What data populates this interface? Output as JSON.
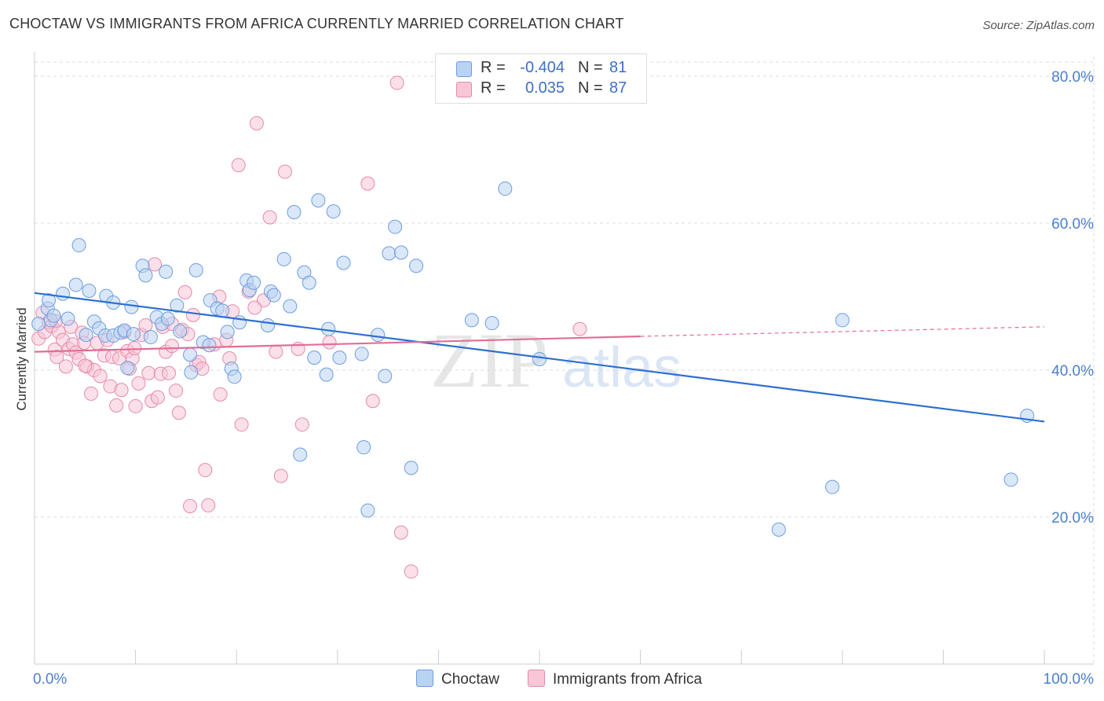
{
  "title": "CHOCTAW VS IMMIGRANTS FROM AFRICA CURRENTLY MARRIED CORRELATION CHART",
  "source": "Source: ZipAtlas.com",
  "watermark": {
    "zip": "ZIP",
    "atlas": "atlas"
  },
  "colors": {
    "choctaw_fill": "#b9d3f3",
    "choctaw_stroke": "#6d9de0",
    "choctaw_line": "#2e6fd1",
    "africa_fill": "#f8c6d7",
    "africa_stroke": "#e58aaa",
    "africa_line": "#e26d98",
    "tick_text": "#4a7fd0",
    "grid": "#dddddd"
  },
  "legend": {
    "rows": [
      {
        "r_label": "R =",
        "r_value": "-0.404",
        "n_label": "N =",
        "n_value": "81"
      },
      {
        "r_label": "R =",
        "r_value": "0.035",
        "n_label": "N =",
        "n_value": "87"
      }
    ]
  },
  "chart_data": {
    "type": "scatter",
    "title": "CHOCTAW VS IMMIGRANTS FROM AFRICA CURRENTLY MARRIED CORRELATION CHART",
    "xlabel": "",
    "ylabel": "Currently Married",
    "xlim": [
      0,
      100
    ],
    "ylim": [
      0,
      80
    ],
    "x_tick_labels": [
      "0.0%",
      "100.0%"
    ],
    "y_ticks": [
      20,
      40,
      60,
      80
    ],
    "y_tick_labels": [
      "20.0%",
      "40.0%",
      "60.0%",
      "80.0%"
    ],
    "grid": true,
    "legend_position": "top-center",
    "series": [
      {
        "name": "Choctaw",
        "color": "#6d9de0",
        "points": [
          [
            0.4,
            46.3
          ],
          [
            1.3,
            48.4
          ],
          [
            1.6,
            46.8
          ],
          [
            1.9,
            47.4
          ],
          [
            1.4,
            49.5
          ],
          [
            3.3,
            47.0
          ],
          [
            4.1,
            51.6
          ],
          [
            4.4,
            57.0
          ],
          [
            2.8,
            50.4
          ],
          [
            5.1,
            44.8
          ],
          [
            5.4,
            50.8
          ],
          [
            5.9,
            46.6
          ],
          [
            6.4,
            45.7
          ],
          [
            7.1,
            50.1
          ],
          [
            7.0,
            44.7
          ],
          [
            7.8,
            44.7
          ],
          [
            7.8,
            49.2
          ],
          [
            8.5,
            45.1
          ],
          [
            8.9,
            45.4
          ],
          [
            9.2,
            40.3
          ],
          [
            9.6,
            48.6
          ],
          [
            9.8,
            44.9
          ],
          [
            10.7,
            54.2
          ],
          [
            11.0,
            52.9
          ],
          [
            11.5,
            44.5
          ],
          [
            12.1,
            47.2
          ],
          [
            12.6,
            46.3
          ],
          [
            13.0,
            53.4
          ],
          [
            13.2,
            47.0
          ],
          [
            14.1,
            48.8
          ],
          [
            14.4,
            45.3
          ],
          [
            15.4,
            42.1
          ],
          [
            15.5,
            39.7
          ],
          [
            16.0,
            53.6
          ],
          [
            16.7,
            43.8
          ],
          [
            17.3,
            43.4
          ],
          [
            17.4,
            49.5
          ],
          [
            18.1,
            48.4
          ],
          [
            18.6,
            48.1
          ],
          [
            19.1,
            45.2
          ],
          [
            19.5,
            40.2
          ],
          [
            19.8,
            39.1
          ],
          [
            20.3,
            46.5
          ],
          [
            21.0,
            52.2
          ],
          [
            21.3,
            50.9
          ],
          [
            21.7,
            51.9
          ],
          [
            23.1,
            46.1
          ],
          [
            23.4,
            50.7
          ],
          [
            23.7,
            50.2
          ],
          [
            24.7,
            55.1
          ],
          [
            25.3,
            48.7
          ],
          [
            25.7,
            61.5
          ],
          [
            26.3,
            28.5
          ],
          [
            26.7,
            53.3
          ],
          [
            27.2,
            51.9
          ],
          [
            27.7,
            41.7
          ],
          [
            28.1,
            63.1
          ],
          [
            28.9,
            39.4
          ],
          [
            29.1,
            45.6
          ],
          [
            29.6,
            61.6
          ],
          [
            30.2,
            41.7
          ],
          [
            30.6,
            54.6
          ],
          [
            32.4,
            42.2
          ],
          [
            32.6,
            29.5
          ],
          [
            33.0,
            20.9
          ],
          [
            34.0,
            44.8
          ],
          [
            34.7,
            39.2
          ],
          [
            35.1,
            55.9
          ],
          [
            35.7,
            59.5
          ],
          [
            36.3,
            56.0
          ],
          [
            37.3,
            26.7
          ],
          [
            37.8,
            54.2
          ],
          [
            43.3,
            46.8
          ],
          [
            45.3,
            46.4
          ],
          [
            46.6,
            64.7
          ],
          [
            50.0,
            41.5
          ],
          [
            73.7,
            18.3
          ],
          [
            79.0,
            24.1
          ],
          [
            80.0,
            46.8
          ],
          [
            96.7,
            25.1
          ],
          [
            98.3,
            33.8
          ]
        ],
        "trend": {
          "x": [
            0,
            100
          ],
          "y": [
            50.5,
            33.0
          ]
        }
      },
      {
        "name": "Immigrants from Africa",
        "color": "#e58aaa",
        "points": [
          [
            0.4,
            44.3
          ],
          [
            0.8,
            47.8
          ],
          [
            1.0,
            45.2
          ],
          [
            1.4,
            46.5
          ],
          [
            1.7,
            46.0
          ],
          [
            2.0,
            42.8
          ],
          [
            2.2,
            41.8
          ],
          [
            2.4,
            45.2
          ],
          [
            2.8,
            44.1
          ],
          [
            3.1,
            40.5
          ],
          [
            3.4,
            42.9
          ],
          [
            3.6,
            45.9
          ],
          [
            3.8,
            43.5
          ],
          [
            4.1,
            42.4
          ],
          [
            4.4,
            41.5
          ],
          [
            4.7,
            45.1
          ],
          [
            4.9,
            43.7
          ],
          [
            5.2,
            40.5
          ],
          [
            5.6,
            36.8
          ],
          [
            5.9,
            40.0
          ],
          [
            6.2,
            43.7
          ],
          [
            6.5,
            39.2
          ],
          [
            6.9,
            42.0
          ],
          [
            7.2,
            44.1
          ],
          [
            7.5,
            37.8
          ],
          [
            7.7,
            41.8
          ],
          [
            8.1,
            35.2
          ],
          [
            8.4,
            41.6
          ],
          [
            8.6,
            37.3
          ],
          [
            8.9,
            45.2
          ],
          [
            9.2,
            42.6
          ],
          [
            9.4,
            40.2
          ],
          [
            9.7,
            41.6
          ],
          [
            10.0,
            35.1
          ],
          [
            10.3,
            38.2
          ],
          [
            10.6,
            44.8
          ],
          [
            11.0,
            46.1
          ],
          [
            11.3,
            39.6
          ],
          [
            11.6,
            35.8
          ],
          [
            11.9,
            54.4
          ],
          [
            12.2,
            36.3
          ],
          [
            12.5,
            39.5
          ],
          [
            12.7,
            45.9
          ],
          [
            13.0,
            42.5
          ],
          [
            13.3,
            39.6
          ],
          [
            13.6,
            43.3
          ],
          [
            14.0,
            37.2
          ],
          [
            14.3,
            34.2
          ],
          [
            14.6,
            45.5
          ],
          [
            14.9,
            50.6
          ],
          [
            15.2,
            44.9
          ],
          [
            15.4,
            21.5
          ],
          [
            15.7,
            47.5
          ],
          [
            16.0,
            40.7
          ],
          [
            16.3,
            41.1
          ],
          [
            16.6,
            40.2
          ],
          [
            16.9,
            26.4
          ],
          [
            17.2,
            21.6
          ],
          [
            17.8,
            43.5
          ],
          [
            18.4,
            36.7
          ],
          [
            19.0,
            44.1
          ],
          [
            19.3,
            41.6
          ],
          [
            19.6,
            48.0
          ],
          [
            20.2,
            67.9
          ],
          [
            20.5,
            32.6
          ],
          [
            21.2,
            50.7
          ],
          [
            22.0,
            73.6
          ],
          [
            22.7,
            49.5
          ],
          [
            23.3,
            60.8
          ],
          [
            23.9,
            42.5
          ],
          [
            24.4,
            25.6
          ],
          [
            24.8,
            67.0
          ],
          [
            26.1,
            42.9
          ],
          [
            26.5,
            32.6
          ],
          [
            29.2,
            43.8
          ],
          [
            33.0,
            65.4
          ],
          [
            33.5,
            35.8
          ],
          [
            35.9,
            79.1
          ],
          [
            36.3,
            17.9
          ],
          [
            37.3,
            12.6
          ],
          [
            54.0,
            45.6
          ],
          [
            2.1,
            46.7
          ],
          [
            5.0,
            40.6
          ],
          [
            9.9,
            43.0
          ],
          [
            13.6,
            46.3
          ],
          [
            18.3,
            50.0
          ],
          [
            21.8,
            48.5
          ]
        ],
        "trend": {
          "x": [
            0,
            60
          ],
          "y": [
            42.5,
            44.6
          ]
        },
        "trend_extension": {
          "x": [
            60,
            100
          ],
          "y": [
            44.6,
            45.9
          ]
        }
      }
    ]
  }
}
